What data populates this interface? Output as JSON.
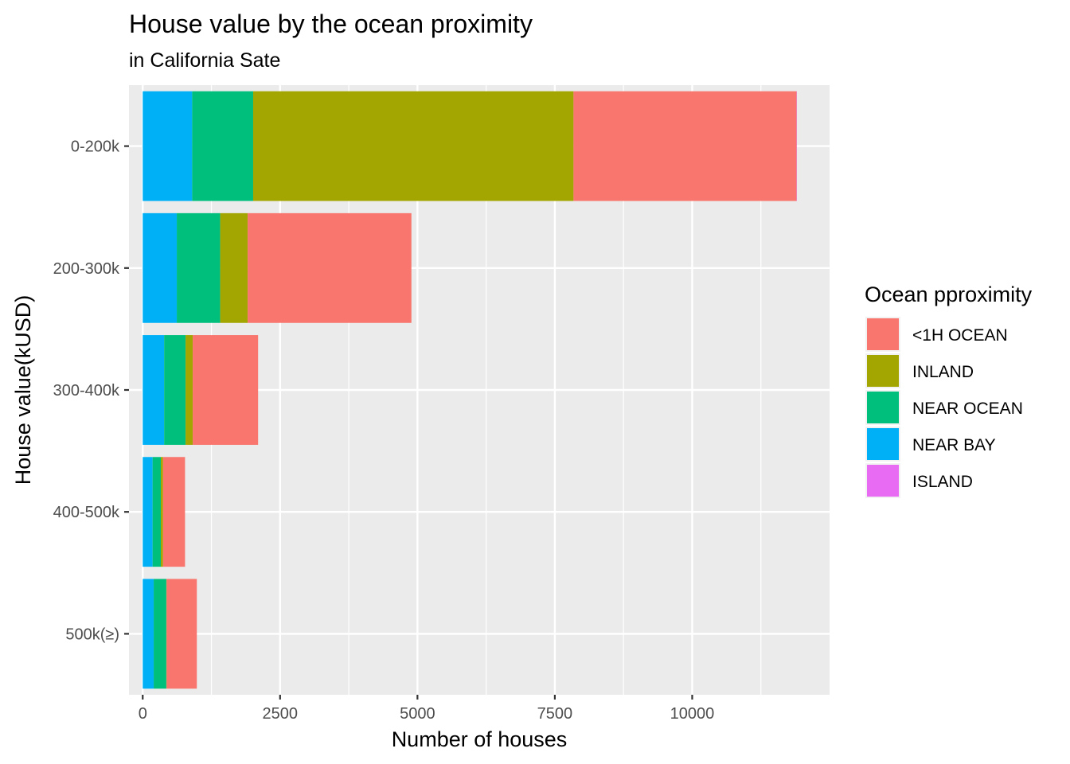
{
  "chart_data": {
    "type": "bar",
    "orientation": "horizontal",
    "stacked": true,
    "title": "House value by the ocean proximity",
    "subtitle": "in California Sate",
    "xlabel": "Number of houses",
    "ylabel": "House value(kUSD)",
    "xlim": [
      -250,
      12500
    ],
    "xticks": [
      0,
      2500,
      5000,
      7500,
      10000
    ],
    "xtick_labels": [
      "0",
      "2500",
      "5000",
      "7500",
      "10000"
    ],
    "categories": [
      "0-200k",
      "200-300k",
      "300-400k",
      "400-500k",
      "500k(≥)"
    ],
    "series": [
      {
        "name": "NEAR BAY",
        "color": "#00B0F6",
        "values": [
          900,
          620,
          390,
          180,
          200
        ]
      },
      {
        "name": "NEAR OCEAN",
        "color": "#00BF7D",
        "values": [
          1110,
          790,
          390,
          150,
          230
        ]
      },
      {
        "name": "INLAND",
        "color": "#A3A500",
        "values": [
          5830,
          500,
          130,
          40,
          5
        ]
      },
      {
        "name": "<1H OCEAN",
        "color": "#F8766D",
        "values": [
          4060,
          2980,
          1190,
          400,
          550
        ]
      },
      {
        "name": "ISLAND",
        "color": "#E76BF3",
        "values": [
          5,
          0,
          0,
          0,
          0
        ]
      }
    ],
    "legend": {
      "title": "Ocean pproximity",
      "position": "right",
      "order": [
        "<1H OCEAN",
        "INLAND",
        "NEAR OCEAN",
        "NEAR BAY",
        "ISLAND"
      ]
    },
    "grid": true,
    "panel_background": "#EBEBEB"
  }
}
